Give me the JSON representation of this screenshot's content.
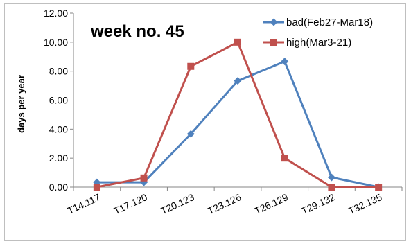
{
  "chart_data": {
    "type": "line",
    "title": "week no. 45",
    "ylabel": "days per year",
    "xlabel": "",
    "categories": [
      "T14.117",
      "T17.120",
      "T20.123",
      "T23.126",
      "T26.129",
      "T29.132",
      "T32.135"
    ],
    "ylim": [
      0,
      12
    ],
    "yticks": [
      "0.00",
      "2.00",
      "4.00",
      "6.00",
      "8.00",
      "10.00",
      "12.00"
    ],
    "grid": false,
    "legend_position": "top-right",
    "series": [
      {
        "name": "bad(Feb27-Mar18)",
        "marker": "diamond",
        "color": "#4f81bd",
        "values": [
          0.33,
          0.33,
          3.67,
          7.33,
          8.67,
          0.67,
          0.0
        ]
      },
      {
        "name": "high(Mar3-21)",
        "marker": "square",
        "color": "#c0504d",
        "values": [
          0.0,
          0.63,
          8.33,
          10.0,
          2.0,
          0.0,
          0.0
        ]
      }
    ]
  }
}
